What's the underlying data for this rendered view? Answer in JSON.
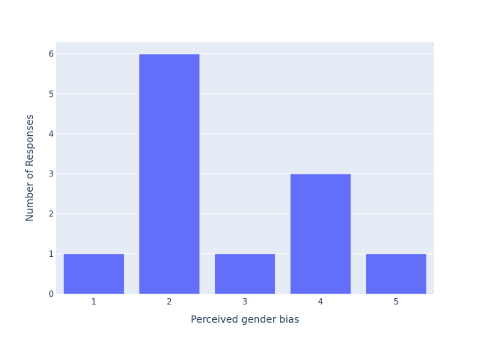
{
  "chart_data": {
    "type": "bar",
    "categories": [
      "1",
      "2",
      "3",
      "4",
      "5"
    ],
    "values": [
      1,
      6,
      1,
      3,
      1
    ],
    "title": "",
    "xlabel": "Perceived gender bias",
    "ylabel": "Number of Responses",
    "ylim": [
      0,
      6.3
    ],
    "yticks": [
      "0",
      "1",
      "2",
      "3",
      "4",
      "5",
      "6"
    ],
    "grid": true,
    "legend": "none",
    "colors": {
      "bar": "#636efa",
      "plot_bg": "#e5ecf6",
      "grid": "#ffffff",
      "text": "#2a3f5f"
    }
  }
}
